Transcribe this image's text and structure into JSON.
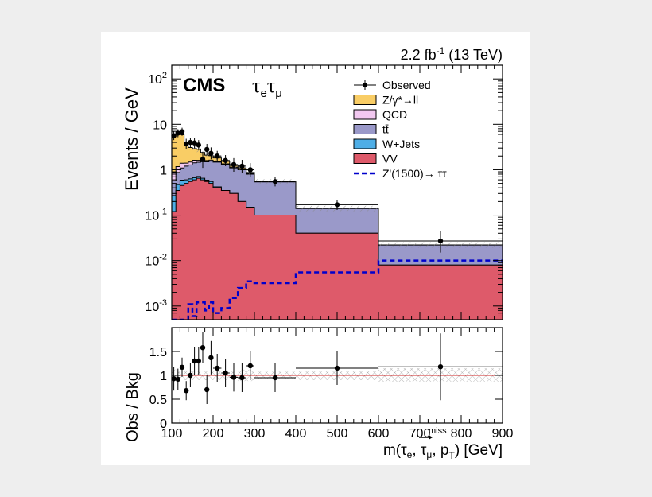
{
  "chart_data": [
    {
      "type": "stacked histogram (log scale)",
      "lumi_label": "2.2 fb",
      "lumi_sup": "-1",
      "energy_label": "(13 TeV)",
      "experiment": "CMS",
      "channel": "τ",
      "channel_sub1": "e",
      "channel_sub2": "μ",
      "ylabel": "Events / GeV",
      "yscale": "log",
      "ylim": [
        0.0005,
        200
      ],
      "xlim": [
        100,
        900
      ],
      "y_ticks": [
        {
          "v": 0.001,
          "base": "10",
          "exp": "-3"
        },
        {
          "v": 0.01,
          "base": "10",
          "exp": "-2"
        },
        {
          "v": 0.1,
          "base": "10",
          "exp": "-1"
        },
        {
          "v": 1,
          "base": "1",
          "exp": ""
        },
        {
          "v": 10,
          "base": "10",
          "exp": ""
        },
        {
          "v": 100,
          "base": "10",
          "exp": "2"
        }
      ],
      "bin_edges": [
        100,
        110,
        120,
        130,
        140,
        150,
        160,
        170,
        180,
        190,
        200,
        220,
        240,
        260,
        280,
        300,
        400,
        600,
        900
      ],
      "series": [
        {
          "name": "VV",
          "color": "#de5a6a",
          "values": [
            0.12,
            0.35,
            0.45,
            0.5,
            0.55,
            0.6,
            0.65,
            0.6,
            0.55,
            0.5,
            0.4,
            0.35,
            0.3,
            0.2,
            0.15,
            0.1,
            0.04,
            0.008
          ]
        },
        {
          "name": "W+Jets",
          "color": "#4eaee6",
          "values": [
            0.15,
            0.12,
            0.14,
            0.1,
            0.08,
            0.07,
            0.06,
            0.05,
            0.04,
            0.05,
            0.02,
            0.0,
            0.0,
            0.0,
            0.0,
            0.0,
            0.0,
            0.0
          ]
        },
        {
          "name": "tt̄",
          "color": "#9a99c9",
          "values": [
            0.3,
            0.4,
            0.5,
            0.6,
            0.65,
            0.75,
            0.75,
            0.85,
            0.9,
            1.0,
            1.05,
            0.95,
            0.8,
            0.8,
            0.65,
            0.44,
            0.1,
            0.014
          ]
        },
        {
          "name": "QCD",
          "color": "#f2c8f0",
          "values": [
            0.3,
            0.3,
            0.3,
            0.2,
            0.2,
            0.2,
            0.15,
            0.1,
            0.1,
            0.08,
            0.05,
            0.05,
            0.04,
            0.02,
            0.02,
            0.0,
            0.0,
            0.0
          ]
        },
        {
          "name": "Z/γ*→ll",
          "color": "#f9cd65",
          "values": [
            4.6,
            5.5,
            4.5,
            2.0,
            1.6,
            1.3,
            1.2,
            0.8,
            0.5,
            0.4,
            0.3,
            0.18,
            0.1,
            0.08,
            0.05,
            0.0,
            0.0,
            0.0
          ]
        }
      ],
      "observed": {
        "name": "Observed",
        "x": [
          105,
          115,
          125,
          135,
          145,
          155,
          165,
          175,
          185,
          195,
          210,
          230,
          250,
          270,
          290,
          350,
          500,
          750
        ],
        "y": [
          5.6,
          6.4,
          6.9,
          3.7,
          4.0,
          3.9,
          3.5,
          1.7,
          2.8,
          2.3,
          2.0,
          1.6,
          1.3,
          1.2,
          1.0,
          0.55,
          0.17,
          0.027
        ],
        "err_up": [
          1.3,
          1.4,
          1.5,
          1.1,
          1.1,
          1.1,
          1.0,
          0.8,
          0.9,
          0.8,
          0.6,
          0.5,
          0.5,
          0.45,
          0.4,
          0.15,
          0.05,
          0.018
        ],
        "err_dn": [
          1.1,
          1.2,
          1.3,
          0.9,
          0.9,
          0.9,
          0.8,
          0.6,
          0.7,
          0.6,
          0.5,
          0.4,
          0.4,
          0.35,
          0.3,
          0.12,
          0.04,
          0.012
        ]
      },
      "signal": {
        "name": "Z'(1500)→ ττ",
        "color": "#0000cc",
        "values": [
          0.0005,
          0.0005,
          0.0005,
          0.0005,
          0.0011,
          0.0006,
          0.0012,
          0.0012,
          0.0008,
          0.0012,
          0.0007,
          0.0009,
          0.0015,
          0.0025,
          0.0035,
          0.0032,
          0.0055,
          0.01
        ]
      },
      "legend_position": "top-right"
    },
    {
      "type": "ratio",
      "ylabel": "Obs / Bkg",
      "xlabel_prefix": "m(τ",
      "xlabel_e": "e",
      "xlabel_mid": ", τ",
      "xlabel_mu": "μ",
      "xlabel_sep": ", ",
      "xlabel_p": "p",
      "xlabel_T": "T",
      "xlabel_miss": "miss",
      "xlabel_suffix": ") [GeV]",
      "xlim": [
        100,
        900
      ],
      "ylim": [
        0,
        2
      ],
      "y_ticks": [
        0,
        0.5,
        1,
        1.5
      ],
      "x_ticks": [
        100,
        200,
        300,
        400,
        500,
        600,
        700,
        800,
        900
      ],
      "x": [
        105,
        115,
        125,
        135,
        145,
        155,
        165,
        175,
        185,
        195,
        210,
        230,
        250,
        270,
        290,
        350,
        500,
        750
      ],
      "y": [
        0.93,
        0.92,
        1.17,
        0.68,
        1.0,
        1.3,
        1.3,
        1.58,
        0.7,
        1.37,
        1.15,
        1.05,
        0.96,
        0.95,
        1.2,
        0.95,
        1.15,
        1.18
      ],
      "err": [
        0.25,
        0.22,
        0.2,
        0.2,
        0.25,
        0.3,
        0.3,
        0.32,
        0.3,
        0.35,
        0.3,
        0.3,
        0.3,
        0.3,
        0.3,
        0.3,
        0.35,
        0.7
      ],
      "syst_band": [
        0.12,
        0.1,
        0.1,
        0.1,
        0.1,
        0.1,
        0.1,
        0.1,
        0.1,
        0.1,
        0.1,
        0.1,
        0.1,
        0.12,
        0.12,
        0.08,
        0.1,
        0.15
      ]
    }
  ]
}
